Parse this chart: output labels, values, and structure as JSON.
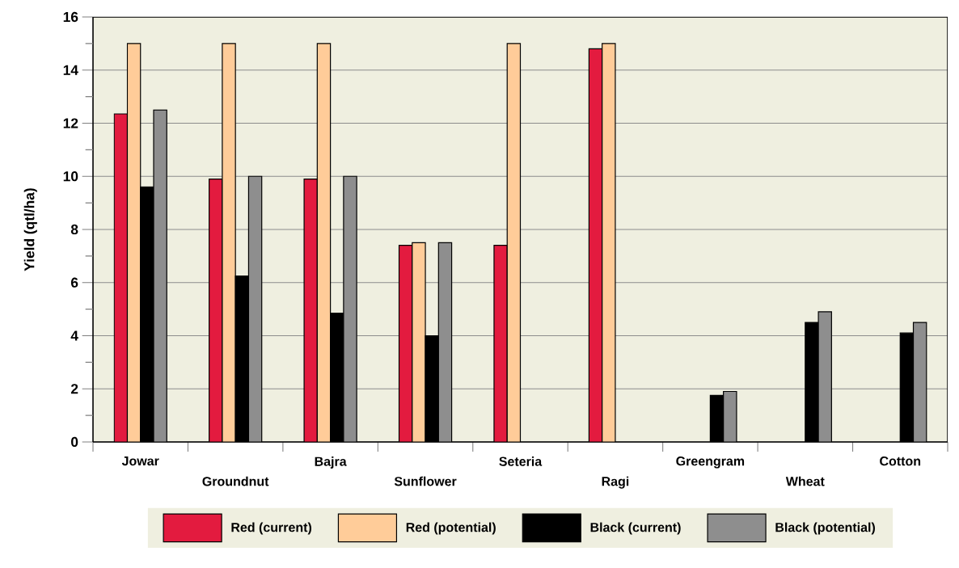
{
  "chart_data": {
    "type": "bar",
    "ylabel": "Yield (qtl/ha)",
    "categories": [
      "Jowar",
      "Groundnut",
      "Bajra",
      "Sunflower",
      "Seteria",
      "Ragi",
      "Greengram",
      "Wheat",
      "Cotton"
    ],
    "series": [
      {
        "name": "Red (current)",
        "color": "#e31b3f",
        "values": [
          12.35,
          9.9,
          9.9,
          7.4,
          7.4,
          14.8,
          null,
          null,
          null
        ]
      },
      {
        "name": "Red (potential)",
        "color": "#ffcc99",
        "values": [
          15,
          15,
          15,
          7.5,
          15,
          15,
          null,
          null,
          null
        ]
      },
      {
        "name": "Black (current)",
        "color": "#000000",
        "values": [
          9.6,
          6.25,
          4.85,
          4.0,
          null,
          null,
          1.75,
          4.5,
          4.1
        ]
      },
      {
        "name": "Black (potential)",
        "color": "#8e8e8e",
        "values": [
          12.5,
          10,
          10,
          7.5,
          null,
          null,
          1.9,
          4.9,
          4.5
        ]
      }
    ],
    "ylim": [
      0,
      16
    ],
    "yticks": [
      0,
      {
        "value": 1,
        "label": null
      },
      2,
      {
        "value": 3,
        "label": null
      },
      4,
      {
        "value": 5,
        "label": null
      },
      6,
      {
        "value": 7,
        "label": null
      },
      8,
      {
        "value": 9,
        "label": null
      },
      10,
      {
        "value": 11,
        "label": null
      },
      12,
      {
        "value": 13,
        "label": null
      },
      14,
      {
        "value": 15,
        "label": null
      },
      16
    ],
    "grid": "y",
    "legend": "bottom"
  }
}
